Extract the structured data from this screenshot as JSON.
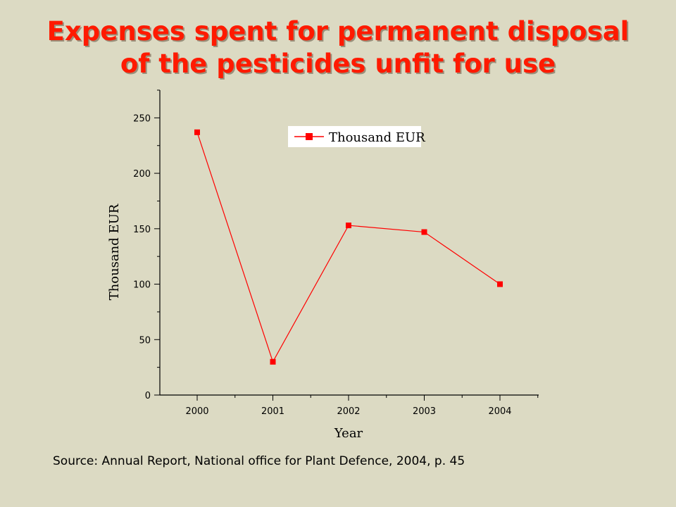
{
  "slide": {
    "title_line1": "Expenses spent for permanent disposal",
    "title_line2": "of the pesticides unfit for use",
    "source": "Source: Annual Report, National office for Plant Defence, 2004, p. 45"
  },
  "chart_data": {
    "type": "line",
    "title": "",
    "xlabel": "Year",
    "ylabel": "Thousand EUR",
    "categories": [
      "2000",
      "2001",
      "2002",
      "2003",
      "2004"
    ],
    "series": [
      {
        "name": "Thousand EUR",
        "values": [
          237,
          30,
          153,
          147,
          100
        ],
        "color": "#ff0000"
      }
    ],
    "ylim": [
      0,
      275
    ],
    "yticks": [
      0,
      50,
      100,
      150,
      200,
      250
    ],
    "grid": false,
    "legend_position": "top-center",
    "marker": "square"
  }
}
